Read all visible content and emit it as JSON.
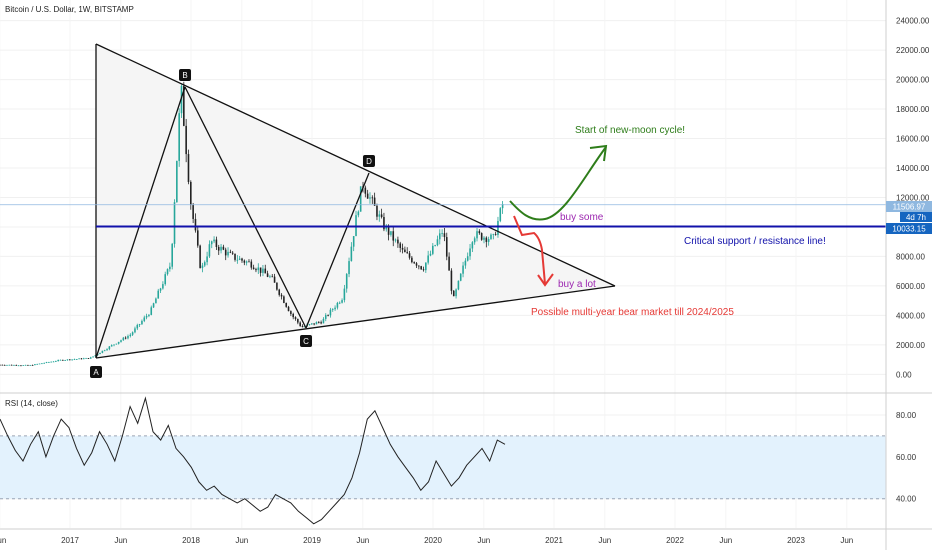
{
  "header": {
    "title": "Bitcoin / U.S. Dollar, 1W, BITSTAMP"
  },
  "rsi_title": "RSI (14, close)",
  "colors": {
    "candle_up": "#26a69a",
    "candle_down": "#222222",
    "rsi_line": "#222222",
    "rsi_band": "#e3f2fd",
    "support": "#1111aa",
    "price_line": "#8fb8e0",
    "green": "#2e7d1a",
    "red": "#e53935",
    "purple": "#9c27b0",
    "badge": "#1565c0"
  },
  "chart_data": [
    {
      "type": "candlestick",
      "title": "Bitcoin / U.S. Dollar, 1W, BITSTAMP",
      "y_ticks": [
        "24000.00",
        "22000.00",
        "20000.00",
        "18000.00",
        "16000.00",
        "14000.00",
        "12000.00",
        "10000.00",
        "8000.00",
        "6000.00",
        "4000.00",
        "2000.00",
        "0.00"
      ],
      "ylim": [
        -1200,
        25400
      ],
      "x_ticks": [
        "Jun",
        "2017",
        "Jun",
        "2018",
        "Jun",
        "2019",
        "Jun",
        "2020",
        "Jun",
        "2021",
        "Jun",
        "2022",
        "Jun",
        "2023",
        "Jun"
      ],
      "weekly_close_approx": [
        [
          "2016-06",
          650
        ],
        [
          "2016-09",
          610
        ],
        [
          "2016-12",
          960
        ],
        [
          "2017-03",
          1100
        ],
        [
          "2017-05",
          1900
        ],
        [
          "2017-07",
          2700
        ],
        [
          "2017-09",
          4300
        ],
        [
          "2017-11",
          7500
        ],
        [
          "2017-12",
          19500
        ],
        [
          "2018-01",
          11500
        ],
        [
          "2018-02",
          7000
        ],
        [
          "2018-03",
          9000
        ],
        [
          "2018-05",
          8000
        ],
        [
          "2018-07",
          7500
        ],
        [
          "2018-09",
          6500
        ],
        [
          "2018-11",
          4000
        ],
        [
          "2018-12",
          3200
        ],
        [
          "2019-02",
          3600
        ],
        [
          "2019-04",
          5200
        ],
        [
          "2019-06",
          13000
        ],
        [
          "2019-08",
          10200
        ],
        [
          "2019-10",
          8300
        ],
        [
          "2019-12",
          7200
        ],
        [
          "2020-02",
          9800
        ],
        [
          "2020-03",
          5000
        ],
        [
          "2020-05",
          9500
        ],
        [
          "2020-07",
          9200
        ],
        [
          "2020-08",
          11800
        ]
      ],
      "price_labels": {
        "current": "11506.97",
        "countdown": "4d 7h",
        "support": "10033.15"
      },
      "support_level": 10033.15,
      "triangle_points": {
        "A": [
          "2017-03",
          1000
        ],
        "B": [
          "2017-12",
          19700
        ],
        "C": [
          "2018-12",
          3200
        ],
        "D": [
          "2019-06",
          13900
        ]
      },
      "annotations": [
        "Start of new-moon cycle!",
        "buy some",
        "Critical support / resistance line!",
        "buy a lot",
        "Possible multi-year bear market till 2024/2025"
      ]
    },
    {
      "type": "line",
      "title": "RSI (14, close)",
      "y_ticks": [
        "80.00",
        "60.00",
        "40.00"
      ],
      "band": [
        40,
        70
      ],
      "ylim": [
        26,
        90
      ],
      "values_approx": [
        78,
        70,
        63,
        58,
        66,
        72,
        60,
        70,
        78,
        74,
        64,
        56,
        62,
        72,
        66,
        58,
        70,
        84,
        76,
        88,
        72,
        68,
        75,
        64,
        60,
        55,
        48,
        44,
        46,
        42,
        40,
        38,
        40,
        37,
        34,
        36,
        42,
        40,
        38,
        34,
        31,
        28,
        30,
        34,
        38,
        42,
        50,
        62,
        78,
        82,
        74,
        66,
        60,
        55,
        50,
        44,
        48,
        58,
        52,
        46,
        50,
        56,
        60,
        64,
        58,
        68,
        66
      ]
    }
  ]
}
